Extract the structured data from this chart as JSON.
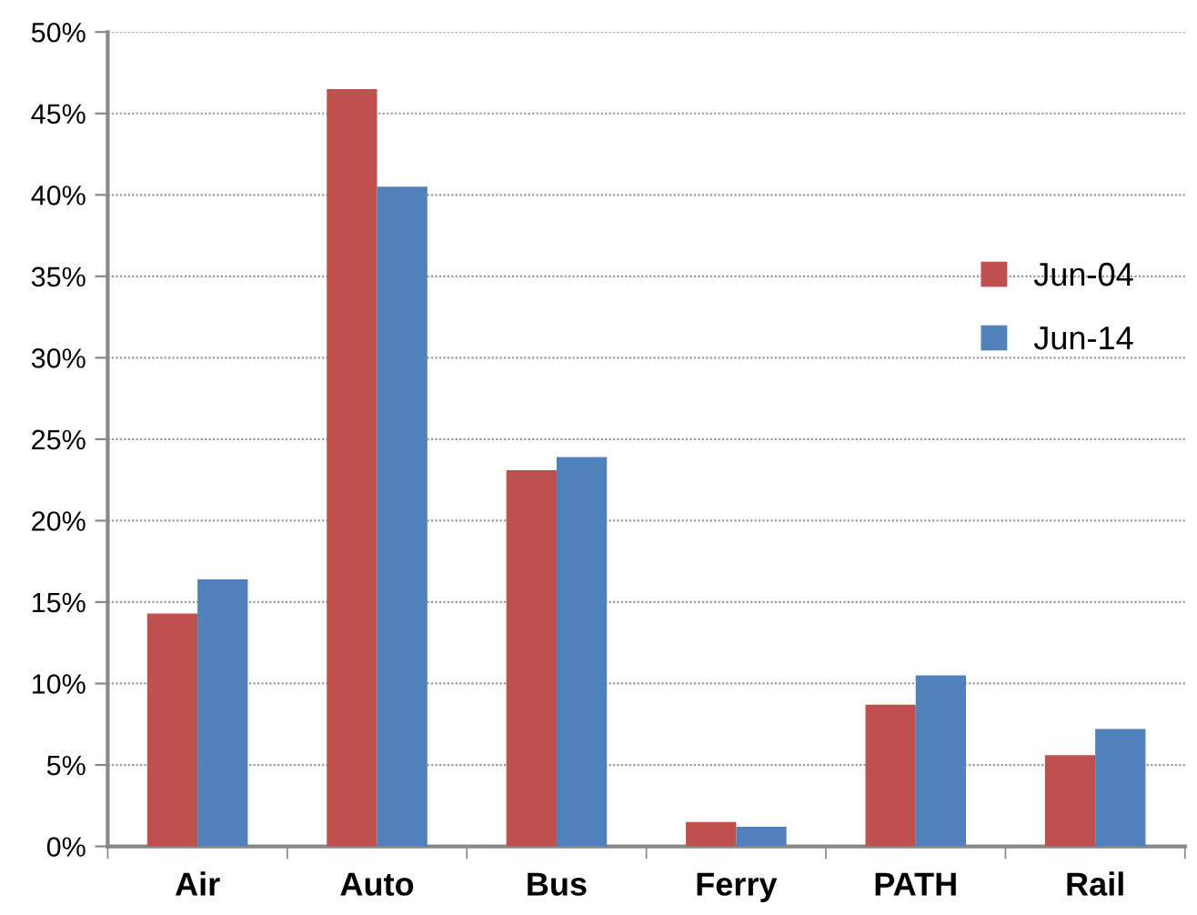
{
  "chart_data": {
    "type": "bar",
    "categories": [
      "Air",
      "Auto",
      "Bus",
      "Ferry",
      "PATH",
      "Rail"
    ],
    "series": [
      {
        "name": "Jun-04",
        "color": "#c0504d",
        "values": [
          14.3,
          46.5,
          23.1,
          1.5,
          8.7,
          5.6
        ]
      },
      {
        "name": "Jun-14",
        "color": "#4f81bd",
        "values": [
          16.4,
          40.5,
          23.9,
          1.2,
          10.5,
          7.2
        ]
      }
    ],
    "ylim": [
      0,
      50
    ],
    "yticks": [
      {
        "value": 0,
        "label": "0%"
      },
      {
        "value": 5,
        "label": "5%"
      },
      {
        "value": 10,
        "label": "10%"
      },
      {
        "value": 15,
        "label": "15%"
      },
      {
        "value": 20,
        "label": "20%"
      },
      {
        "value": 25,
        "label": "25%"
      },
      {
        "value": 30,
        "label": "30%"
      },
      {
        "value": 35,
        "label": "35%"
      },
      {
        "value": 40,
        "label": "40%"
      },
      {
        "value": 45,
        "label": "45%"
      },
      {
        "value": 50,
        "label": "50%"
      }
    ],
    "grid": "y",
    "legend": "center right"
  }
}
